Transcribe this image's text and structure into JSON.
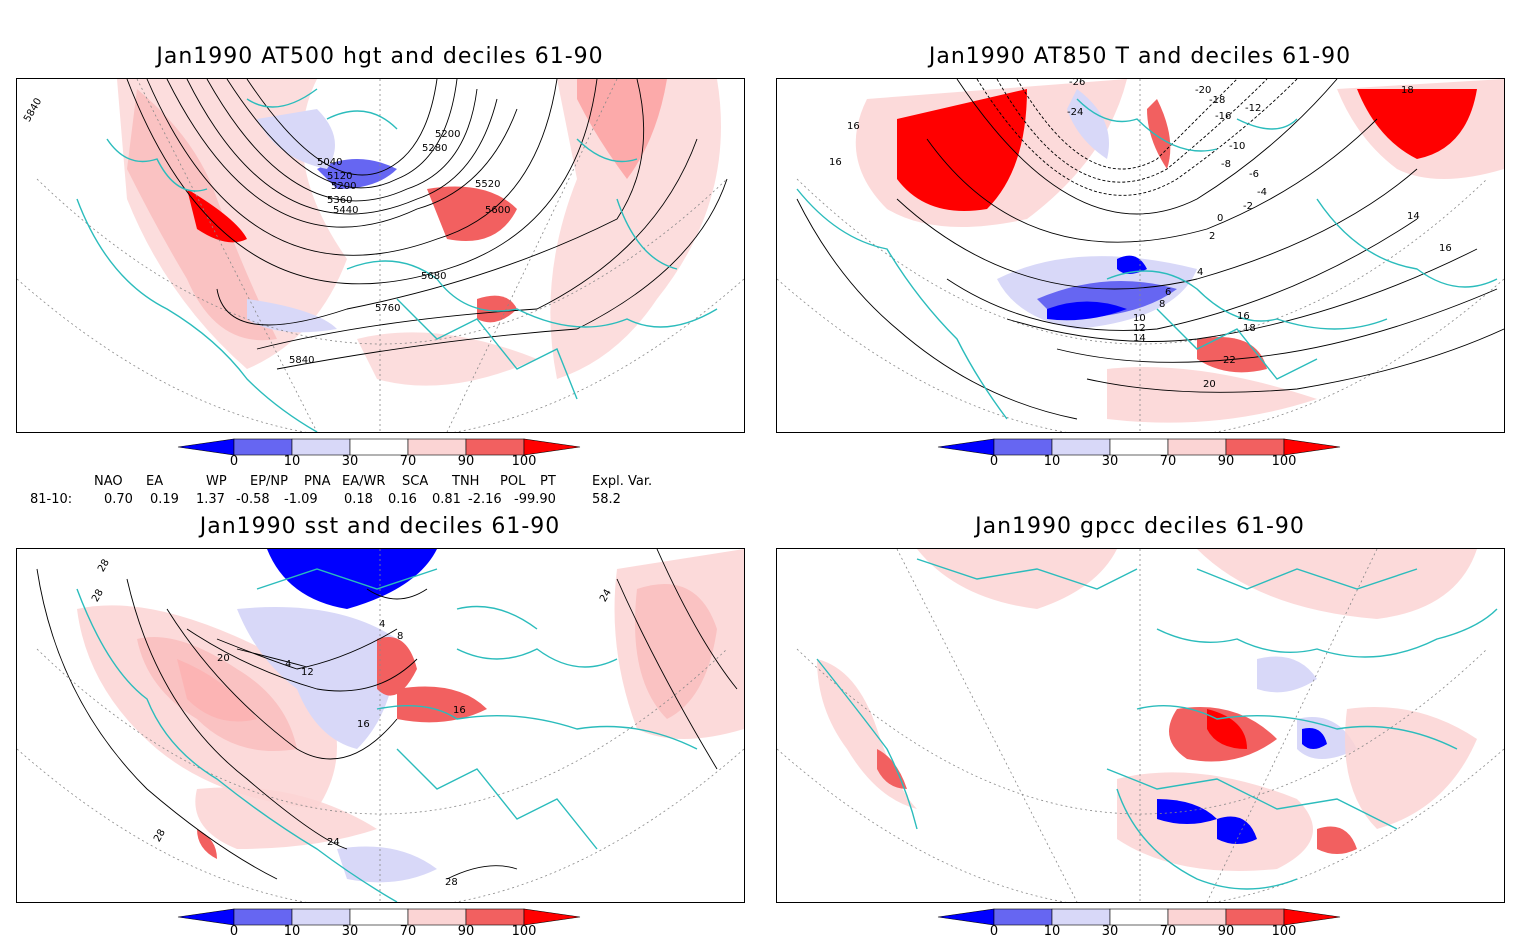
{
  "panels": [
    {
      "id": "p1",
      "title": "Jan1990 AT500 hgt and deciles 61-90",
      "contour_labels": [
        "5840",
        "5040",
        "5120",
        "5200",
        "5360",
        "5440",
        "5200",
        "5280",
        "5520",
        "5600",
        "5680",
        "5760",
        "5840"
      ]
    },
    {
      "id": "p2",
      "title": "Jan1990 AT850 T and deciles 61-90",
      "contour_labels": [
        "-26",
        "-24",
        "-20",
        "-18",
        "-16",
        "-12",
        "-10",
        "-8",
        "-6",
        "-4",
        "-2",
        "0",
        "2",
        "4",
        "6",
        "8",
        "10",
        "12",
        "14",
        "16",
        "18",
        "20",
        "22",
        "16",
        "16",
        "14",
        "16",
        "18"
      ]
    },
    {
      "id": "p3",
      "title": "Jan1990 sst and deciles 61-90",
      "contour_labels": [
        "28",
        "28",
        "24",
        "20",
        "12",
        "4",
        "8",
        "4",
        "16",
        "16",
        "28",
        "24",
        "28"
      ]
    },
    {
      "id": "p4",
      "title": "Jan1990 gpcc deciles 61-90",
      "contour_labels": []
    }
  ],
  "colorbar": {
    "labels": [
      "0",
      "10",
      "30",
      "70",
      "90",
      "100"
    ],
    "colors": [
      "#0000ff",
      "#6666f2",
      "#d8d8f8",
      "#ffffff",
      "#fbd4d4",
      "#f26060",
      "#ff0000"
    ]
  },
  "indices": {
    "headers": [
      "NAO",
      "EA",
      "WP",
      "EP/NP",
      "PNA",
      "EA/WR",
      "SCA",
      "TNH",
      "POL",
      "PT",
      "Expl. Var."
    ],
    "row_label": "81-10:",
    "values": [
      "0.70",
      "0.19",
      "1.37",
      "-0.58",
      "-1.09",
      "0.18",
      "0.16",
      "0.81",
      "-2.16",
      "-99.90",
      "58.2"
    ]
  },
  "colors": {
    "coast": "#2bbcbc",
    "contour": "#000000",
    "grid": "#888888"
  }
}
